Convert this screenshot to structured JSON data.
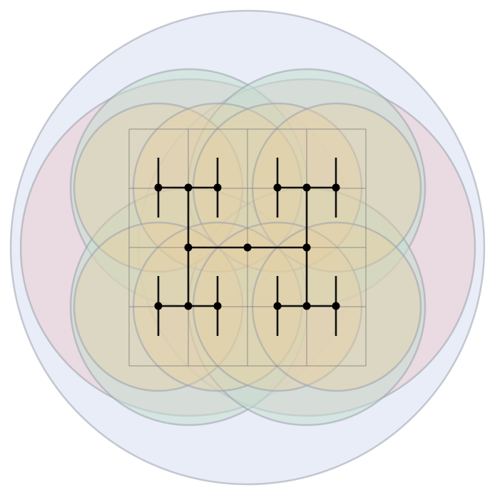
{
  "diagram": {
    "colors": {
      "background": "#ffffff",
      "level0_fill": "#e8ecf7",
      "level1_fill": "#ead3da",
      "level2_fill": "#c4ded0",
      "level3_fill": "#e7cfa2",
      "circle_stroke": "#9aa0ad",
      "grid_stroke": "#777777",
      "tree_stroke": "#111111",
      "node_fill": "#000000"
    },
    "grid": {
      "rows": 4,
      "cols": 4
    },
    "circle_levels": [
      {
        "level": 0,
        "count": 1
      },
      {
        "level": 1,
        "count": 2
      },
      {
        "level": 2,
        "count": 4
      },
      {
        "level": 3,
        "count": 8
      }
    ],
    "tree": {
      "node_count": 15,
      "edge_count": 14,
      "stub_count": 8
    }
  }
}
